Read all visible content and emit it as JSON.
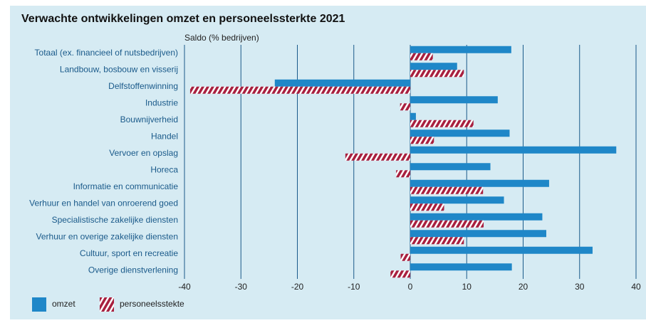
{
  "chart_data": {
    "type": "hbar",
    "title": "Verwachte ontwikkelingen omzet en personeelssterkte 2021",
    "xlabel": "Saldo (% bedrijven)",
    "categories": [
      "Totaal (ex. financieel of nutsbedrijven)",
      "Landbouw, bosbouw en visserij",
      "Delfstoffenwinning",
      "Industrie",
      "Bouwnijverheid",
      "Handel",
      "Vervoer en opslag",
      "Horeca",
      "Informatie en communicatie",
      "Verhuur en handel van onroerend goed",
      "Specialistische zakelijke diensten",
      "Verhuur en overige zakelijke diensten",
      "Cultuur, sport en recreatie",
      "Overige dienstverlening"
    ],
    "series": [
      {
        "name": "omzet",
        "color": "#1f87c8",
        "values": [
          17.9,
          8.3,
          -24,
          15.5,
          1,
          17.6,
          36.5,
          14.2,
          24.6,
          16.6,
          23.4,
          24.1,
          32.3,
          18.0
        ]
      },
      {
        "name": "personeelsstekte",
        "color": "#a8203f",
        "hatch": true,
        "values": [
          4.0,
          9.5,
          -39,
          -1.8,
          11.2,
          4.2,
          -11.5,
          -2.5,
          12.9,
          6.0,
          13.0,
          9.5,
          -1.7,
          -3.5
        ]
      }
    ],
    "xlim": [
      -40,
      40
    ],
    "xticks": [
      -40,
      -30,
      -20,
      -10,
      0,
      10,
      20,
      30,
      40
    ],
    "grid": true
  }
}
